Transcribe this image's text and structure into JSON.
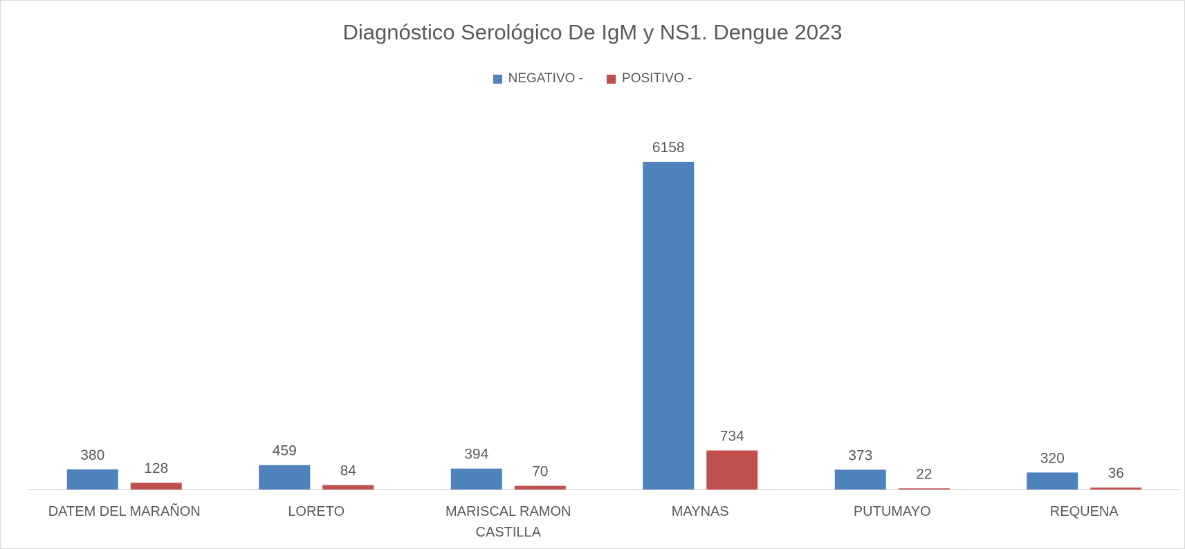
{
  "chart_data": {
    "type": "bar",
    "title": "Diagnóstico Serológico De IgM y NS1. Dengue 2023",
    "categories": [
      "DATEM DEL MARAÑON",
      "LORETO",
      "MARISCAL RAMON CASTILLA",
      "MAYNAS",
      "PUTUMAYO",
      "REQUENA"
    ],
    "series": [
      {
        "name": "NEGATIVO -",
        "color": "#4f81bd",
        "values": [
          380,
          459,
          394,
          6158,
          373,
          320
        ]
      },
      {
        "name": "POSITIVO -",
        "color": "#c0504d",
        "values": [
          128,
          84,
          70,
          734,
          22,
          36
        ]
      }
    ],
    "legend": "top"
  }
}
